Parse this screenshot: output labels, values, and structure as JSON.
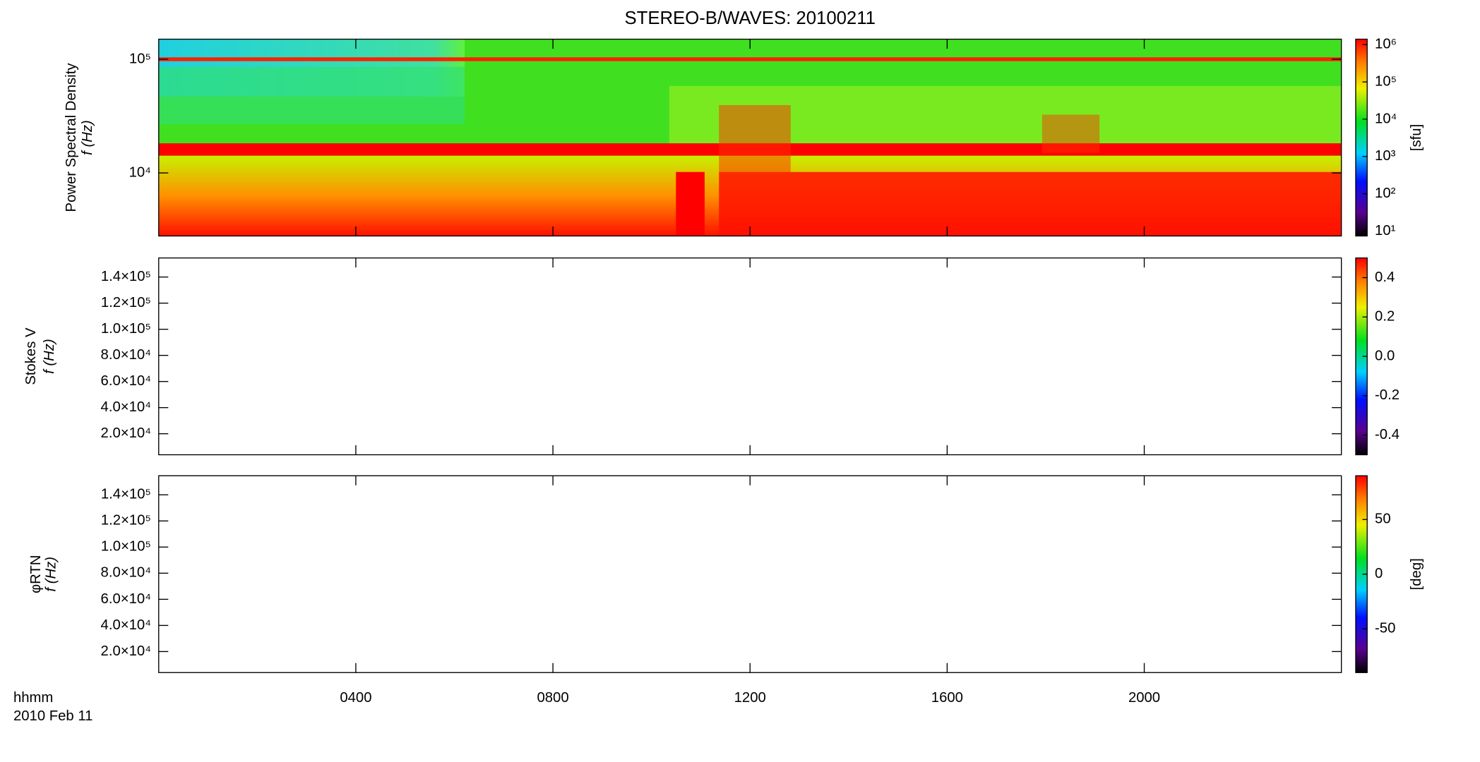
{
  "chart_data": [
    {
      "type": "spectrogram",
      "title": "STEREO-B/WAVES: 20100211",
      "ylabel": [
        "Power Spectral Density",
        "f (Hz)"
      ],
      "ylog": true,
      "ylim": [
        2790,
        150000
      ],
      "yticks": [
        {
          "value": 10000,
          "label": "10⁴"
        },
        {
          "value": 100000,
          "label": "10⁵"
        }
      ],
      "colorbar": {
        "log": true,
        "lim": [
          7.4,
          1400000
        ],
        "label": "[sfu]",
        "ticks": [
          {
            "value": 10,
            "label": "10¹"
          },
          {
            "value": 100,
            "label": "10²"
          },
          {
            "value": 1000,
            "label": "10³"
          },
          {
            "value": 10000,
            "label": "10⁴"
          },
          {
            "value": 100000,
            "label": "10⁵"
          },
          {
            "value": 1000000,
            "label": "10⁶"
          }
        ]
      }
    },
    {
      "type": "spectrogram",
      "ylabel": [
        "Stokes V",
        "f (Hz)"
      ],
      "ylog": false,
      "ylim": [
        3900,
        154600
      ],
      "yticks": [
        {
          "value": 20000,
          "label": "2.0×10⁴"
        },
        {
          "value": 40000,
          "label": "4.0×10⁴"
        },
        {
          "value": 60000,
          "label": "6.0×10⁴"
        },
        {
          "value": 80000,
          "label": "8.0×10⁴"
        },
        {
          "value": 100000,
          "label": "1.0×10⁵"
        },
        {
          "value": 120000,
          "label": "1.2×10⁵"
        },
        {
          "value": 140000,
          "label": "1.4×10⁵"
        }
      ],
      "colorbar": {
        "log": false,
        "lim": [
          -0.5,
          0.5
        ],
        "ticks": [
          {
            "value": -0.4,
            "label": "-0.4"
          },
          {
            "value": -0.2,
            "label": "-0.2"
          },
          {
            "value": 0,
            "label": "0.0"
          },
          {
            "value": 0.2,
            "label": "0.2"
          },
          {
            "value": 0.4,
            "label": "0.4"
          }
        ]
      }
    },
    {
      "type": "spectrogram",
      "ylabel": [
        "φRTN",
        "f (Hz)"
      ],
      "ylog": false,
      "ylim": [
        3900,
        154600
      ],
      "yticks": [
        {
          "value": 20000,
          "label": "2.0×10⁴"
        },
        {
          "value": 40000,
          "label": "4.0×10⁴"
        },
        {
          "value": 60000,
          "label": "6.0×10⁴"
        },
        {
          "value": 80000,
          "label": "8.0×10⁴"
        },
        {
          "value": 100000,
          "label": "1.0×10⁵"
        },
        {
          "value": 120000,
          "label": "1.2×10⁵"
        },
        {
          "value": 140000,
          "label": "1.4×10⁵"
        }
      ],
      "colorbar": {
        "log": false,
        "lim": [
          -90,
          90
        ],
        "label": "[deg]",
        "ticks": [
          -50,
          0,
          50
        ]
      },
      "xlabel": "hhmm",
      "date": "2010 Feb 11",
      "xlim": [
        0,
        24
      ],
      "xticks": [
        {
          "value": 4,
          "label": "0400"
        },
        {
          "value": 8,
          "label": "0800"
        },
        {
          "value": 12,
          "label": "1200"
        },
        {
          "value": 16,
          "label": "1600"
        },
        {
          "value": 20,
          "label": "2000"
        }
      ]
    }
  ]
}
